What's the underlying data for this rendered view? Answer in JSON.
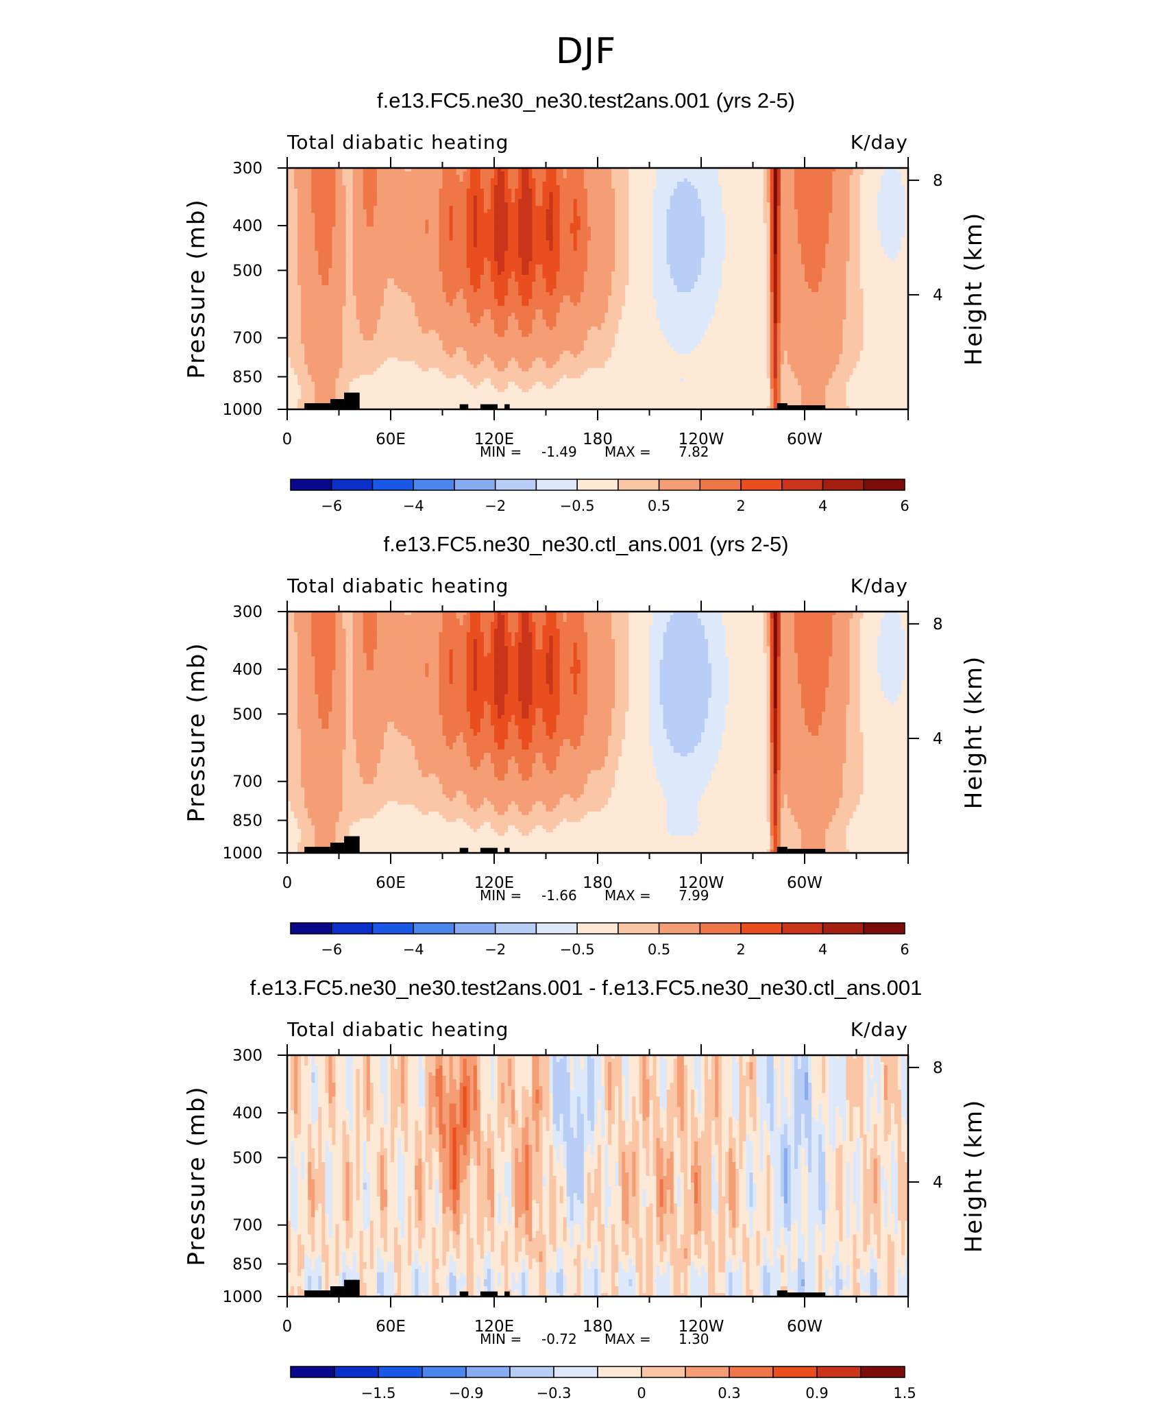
{
  "figure": {
    "title": "DJF"
  },
  "chart_data": [
    {
      "type": "heatmap",
      "title": "f.e13.FC5.ne30_ne30.test2ans.001 (yrs 2-5)",
      "subtitle_left": "Total diabatic heating",
      "subtitle_right": "K/day",
      "xlabel": "",
      "ylabel": "Pressure (mb)",
      "ylabel_right": "Height (km)",
      "xticks": [
        "0",
        "60E",
        "120E",
        "180",
        "120W",
        "60W"
      ],
      "xtick_lon": [
        0,
        60,
        120,
        180,
        240,
        300
      ],
      "xlim": [
        0,
        360
      ],
      "yticks": [
        "300",
        "400",
        "500",
        "700",
        "850",
        "1000"
      ],
      "ytick_p": [
        300,
        400,
        500,
        700,
        850,
        1000
      ],
      "ylim": [
        1000,
        300
      ],
      "yticks_right": [
        "8",
        "4"
      ],
      "ytick_right_km": [
        8,
        4
      ],
      "stats": {
        "min_label": "MIN =",
        "min": "-1.49",
        "max_label": "MAX =",
        "max": "7.82"
      },
      "colorbar": {
        "labels": [
          "−6",
          "−4",
          "−2",
          "−0.5",
          "0.5",
          "2",
          "4",
          "6"
        ],
        "colors": [
          "#08088c",
          "#0b2fc9",
          "#1a58e8",
          "#4b86ed",
          "#87acf2",
          "#b9cef6",
          "#dde9fb",
          "#fde9d5",
          "#fbc6a6",
          "#f59e75",
          "#ef7647",
          "#ea4e1f",
          "#c9341a",
          "#a51f11",
          "#7b0c09"
        ]
      },
      "field": {
        "kind": "full",
        "features": [
          {
            "name": "Indian Ocean / Africa heating",
            "lon": [
              5,
              40
            ],
            "peak": 2.5
          },
          {
            "name": "Maritime Continent / West Pacific heating",
            "lon": [
              80,
              180
            ],
            "peak": 4.5
          },
          {
            "name": "East Pacific cooling",
            "lon": [
              190,
              270
            ],
            "peak": -1.49
          },
          {
            "name": "South America heating",
            "lon": [
              280,
              330
            ],
            "peak": 7.82
          }
        ]
      }
    },
    {
      "type": "heatmap",
      "title": "f.e13.FC5.ne30_ne30.ctl_ans.001 (yrs 2-5)",
      "subtitle_left": "Total diabatic heating",
      "subtitle_right": "K/day",
      "xlabel": "",
      "ylabel": "Pressure (mb)",
      "ylabel_right": "Height (km)",
      "xticks": [
        "0",
        "60E",
        "120E",
        "180",
        "120W",
        "60W"
      ],
      "xtick_lon": [
        0,
        60,
        120,
        180,
        240,
        300
      ],
      "xlim": [
        0,
        360
      ],
      "yticks": [
        "300",
        "400",
        "500",
        "700",
        "850",
        "1000"
      ],
      "ytick_p": [
        300,
        400,
        500,
        700,
        850,
        1000
      ],
      "ylim": [
        1000,
        300
      ],
      "yticks_right": [
        "8",
        "4"
      ],
      "ytick_right_km": [
        8,
        4
      ],
      "stats": {
        "min_label": "MIN =",
        "min": "-1.66",
        "max_label": "MAX =",
        "max": "7.99"
      },
      "colorbar": {
        "labels": [
          "−6",
          "−4",
          "−2",
          "−0.5",
          "0.5",
          "2",
          "4",
          "6"
        ],
        "colors": [
          "#08088c",
          "#0b2fc9",
          "#1a58e8",
          "#4b86ed",
          "#87acf2",
          "#b9cef6",
          "#dde9fb",
          "#fde9d5",
          "#fbc6a6",
          "#f59e75",
          "#ef7647",
          "#ea4e1f",
          "#c9341a",
          "#a51f11",
          "#7b0c09"
        ]
      },
      "field": {
        "kind": "full",
        "features": [
          {
            "name": "Indian Ocean / Africa heating",
            "lon": [
              5,
              40
            ],
            "peak": 2.5
          },
          {
            "name": "Maritime Continent / West Pacific heating",
            "lon": [
              80,
              180
            ],
            "peak": 4.2
          },
          {
            "name": "East Pacific cooling",
            "lon": [
              190,
              270
            ],
            "peak": -1.66
          },
          {
            "name": "South America heating",
            "lon": [
              280,
              330
            ],
            "peak": 7.99
          }
        ]
      }
    },
    {
      "type": "heatmap",
      "title": "f.e13.FC5.ne30_ne30.test2ans.001 - f.e13.FC5.ne30_ne30.ctl_ans.001",
      "subtitle_left": "Total diabatic heating",
      "subtitle_right": "K/day",
      "xlabel": "",
      "ylabel": "Pressure (mb)",
      "ylabel_right": "Height (km)",
      "xticks": [
        "0",
        "60E",
        "120E",
        "180",
        "120W",
        "60W"
      ],
      "xtick_lon": [
        0,
        60,
        120,
        180,
        240,
        300
      ],
      "xlim": [
        0,
        360
      ],
      "yticks": [
        "300",
        "400",
        "500",
        "700",
        "850",
        "1000"
      ],
      "ytick_p": [
        300,
        400,
        500,
        700,
        850,
        1000
      ],
      "ylim": [
        1000,
        300
      ],
      "yticks_right": [
        "8",
        "4"
      ],
      "ytick_right_km": [
        8,
        4
      ],
      "stats": {
        "min_label": "MIN =",
        "min": "-0.72",
        "max_label": "MAX =",
        "max": "1.30"
      },
      "colorbar": {
        "labels": [
          "−1.5",
          "−0.9",
          "−0.3",
          "0",
          "0.3",
          "0.9",
          "1.5"
        ],
        "colors": [
          "#08088c",
          "#0b2fc9",
          "#1a58e8",
          "#4b86ed",
          "#87acf2",
          "#b9cef6",
          "#dde9fb",
          "#fde9d5",
          "#fbc6a6",
          "#f59e75",
          "#ef7647",
          "#ea4e1f",
          "#c9341a",
          "#7b0c09"
        ]
      },
      "field": {
        "kind": "difference",
        "features": [
          {
            "name": "positive difference over Indian Ocean",
            "lon": [
              85,
              110
            ],
            "peak": 1.3
          },
          {
            "name": "negative difference over western Pacific",
            "lon": [
              155,
              175
            ],
            "peak": -0.72
          },
          {
            "name": "negative difference over South America",
            "lon": [
              280,
              310
            ],
            "peak": -0.6
          }
        ]
      }
    }
  ]
}
